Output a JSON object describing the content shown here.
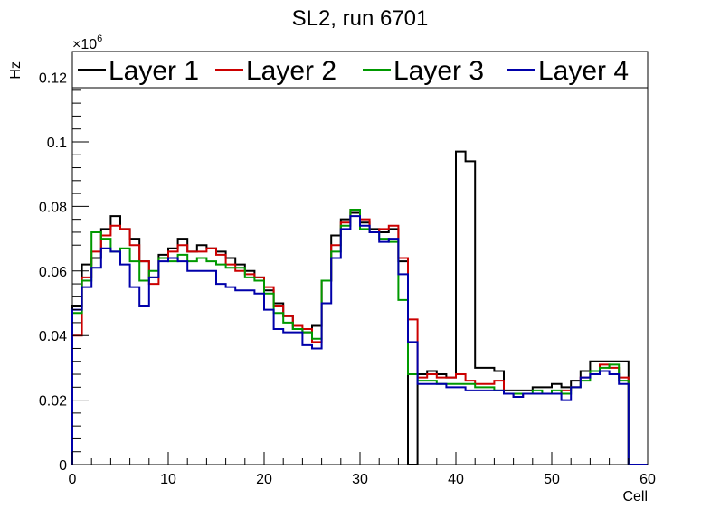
{
  "chart_data": {
    "type": "step",
    "title": "SL2, run 6701",
    "xlabel": "Cell",
    "ylabel": "Hz",
    "exponent_label": "×10",
    "exponent_power": "6",
    "xlim": [
      0,
      60
    ],
    "ylim": [
      0,
      0.128
    ],
    "x_ticks": [
      0,
      10,
      20,
      30,
      40,
      50,
      60
    ],
    "x_tick_labels": [
      "0",
      "10",
      "20",
      "30",
      "40",
      "50",
      "60"
    ],
    "y_ticks": [
      0,
      0.02,
      0.04,
      0.06,
      0.08,
      0.1,
      0.12
    ],
    "y_tick_labels": [
      "0",
      "0.02",
      "0.04",
      "0.06",
      "0.08",
      "0.1",
      "0.12"
    ],
    "legend_position": "top",
    "series": [
      {
        "name": "Layer 1",
        "color": "#000000",
        "x_start": 0,
        "values": [
          0.049,
          0.062,
          0.064,
          0.073,
          0.077,
          0.073,
          0.07,
          0.063,
          0.058,
          0.065,
          0.067,
          0.07,
          0.066,
          0.068,
          0.067,
          0.066,
          0.064,
          0.062,
          0.06,
          0.058,
          0.054,
          0.05,
          0.046,
          0.042,
          0.041,
          0.043,
          0.057,
          0.071,
          0.076,
          0.078,
          0.075,
          0.073,
          0.072,
          0.073,
          0.063,
          0.0,
          0.028,
          0.029,
          0.028,
          0.027,
          0.097,
          0.094,
          0.03,
          0.03,
          0.029,
          0.023,
          0.023,
          0.023,
          0.024,
          0.024,
          0.025,
          0.024,
          0.026,
          0.029,
          0.032,
          0.032,
          0.032,
          0.032,
          0.0,
          0.0
        ]
      },
      {
        "name": "Layer 2",
        "color": "#cc0000",
        "x_start": 0,
        "values": [
          0.04,
          0.058,
          0.066,
          0.071,
          0.074,
          0.073,
          0.068,
          0.063,
          0.056,
          0.064,
          0.066,
          0.068,
          0.066,
          0.066,
          0.067,
          0.065,
          0.062,
          0.06,
          0.059,
          0.058,
          0.055,
          0.049,
          0.046,
          0.043,
          0.042,
          0.038,
          0.057,
          0.068,
          0.075,
          0.079,
          0.076,
          0.072,
          0.073,
          0.074,
          0.064,
          0.045,
          0.027,
          0.028,
          0.027,
          0.027,
          0.028,
          0.026,
          0.025,
          0.025,
          0.026,
          0.022,
          0.021,
          0.022,
          0.022,
          0.022,
          0.022,
          0.023,
          0.024,
          0.027,
          0.029,
          0.031,
          0.03,
          0.027,
          0.0,
          0.0
        ]
      },
      {
        "name": "Layer 3",
        "color": "#009900",
        "x_start": 0,
        "values": [
          0.047,
          0.057,
          0.072,
          0.07,
          0.066,
          0.067,
          0.063,
          0.057,
          0.06,
          0.064,
          0.063,
          0.065,
          0.063,
          0.064,
          0.063,
          0.062,
          0.061,
          0.061,
          0.058,
          0.057,
          0.053,
          0.047,
          0.044,
          0.042,
          0.041,
          0.039,
          0.057,
          0.066,
          0.074,
          0.079,
          0.073,
          0.072,
          0.07,
          0.069,
          0.051,
          0.028,
          0.026,
          0.026,
          0.025,
          0.025,
          0.025,
          0.025,
          0.024,
          0.024,
          0.023,
          0.022,
          0.022,
          0.022,
          0.023,
          0.022,
          0.023,
          0.022,
          0.024,
          0.026,
          0.029,
          0.03,
          0.031,
          0.026,
          0.0,
          0.0
        ]
      },
      {
        "name": "Layer 4",
        "color": "#0000aa",
        "x_start": 0,
        "values": [
          0.048,
          0.055,
          0.061,
          0.067,
          0.066,
          0.062,
          0.055,
          0.049,
          0.058,
          0.063,
          0.064,
          0.063,
          0.06,
          0.06,
          0.06,
          0.056,
          0.055,
          0.054,
          0.054,
          0.053,
          0.048,
          0.042,
          0.041,
          0.041,
          0.037,
          0.036,
          0.05,
          0.064,
          0.073,
          0.077,
          0.074,
          0.072,
          0.069,
          0.07,
          0.059,
          0.038,
          0.025,
          0.025,
          0.025,
          0.024,
          0.024,
          0.023,
          0.023,
          0.023,
          0.023,
          0.022,
          0.021,
          0.022,
          0.022,
          0.022,
          0.022,
          0.02,
          0.024,
          0.027,
          0.028,
          0.029,
          0.028,
          0.025,
          0.0,
          0.0
        ]
      }
    ]
  }
}
